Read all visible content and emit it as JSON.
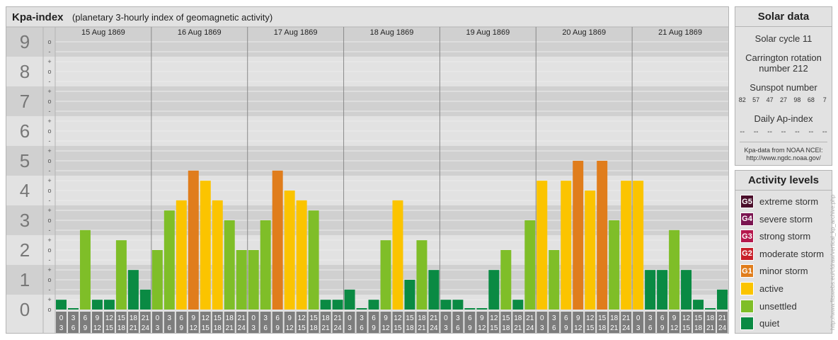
{
  "header": {
    "title": "Kpa-index",
    "subtitle": "(planetary 3-hourly index of geomagnetic activity)"
  },
  "chart_data": {
    "type": "bar",
    "ylim": [
      0,
      9
    ],
    "y_ticks": [
      "0",
      "1",
      "2",
      "3",
      "4",
      "5",
      "6",
      "7",
      "8",
      "9"
    ],
    "minor_marks": [
      "-",
      "o",
      "+"
    ],
    "days": [
      "15 Aug 1869",
      "16 Aug 1869",
      "17 Aug 1869",
      "18 Aug 1869",
      "19 Aug 1869",
      "20 Aug 1869",
      "21 Aug 1869"
    ],
    "slot_top": [
      "0",
      "3",
      "6",
      "9",
      "12",
      "15",
      "18",
      "21"
    ],
    "slot_bottom": [
      "3",
      "6",
      "9",
      "12",
      "15",
      "18",
      "21",
      "24"
    ],
    "values": [
      [
        0.33,
        0,
        2.67,
        0.33,
        0.33,
        2.33,
        1.33,
        0.67
      ],
      [
        2,
        3.33,
        3.67,
        4.67,
        4.33,
        3.67,
        3,
        2
      ],
      [
        2,
        3,
        4.67,
        4,
        3.67,
        3.33,
        0.33,
        0.33
      ],
      [
        0.67,
        0,
        0.33,
        2.33,
        3.67,
        1,
        2.33,
        1.33
      ],
      [
        0.33,
        0.33,
        0,
        0,
        1.33,
        2,
        0.33,
        3
      ],
      [
        4.33,
        2,
        4.33,
        5,
        4,
        5,
        3,
        4.33
      ],
      [
        4.33,
        1.33,
        1.33,
        2.67,
        1.33,
        0.33,
        0,
        0.67
      ]
    ],
    "level_colors": {
      "quiet": "#0a8a43",
      "unsettled": "#7fbe28",
      "active": "#fbc400",
      "minor": "#e07d1c",
      "moderate": "#c8202a",
      "strong": "#b5184d",
      "severe": "#7a1450",
      "extreme": "#4a0e2a"
    }
  },
  "sidebar": {
    "solar_title": "Solar data",
    "solar_cycle": "Solar cycle 11",
    "carrington_line1": "Carrington rotation",
    "carrington_line2": "number 212",
    "sunspot_title": "Sunspot number",
    "sunspot_values": [
      "82",
      "57",
      "47",
      "27",
      "98",
      "68",
      "7"
    ],
    "ap_title": "Daily Ap-index",
    "ap_values": [
      "--",
      "--",
      "--",
      "--",
      "--",
      "--",
      "--"
    ],
    "source_line1": "Kpa-data from NOAA NCEI:",
    "source_line2": "http://www.ngdc.noaa.gov/",
    "activity_title": "Activity levels",
    "levels": [
      {
        "code": "G5",
        "label": "extreme storm",
        "color": "#4a0e2a"
      },
      {
        "code": "G4",
        "label": "severe storm",
        "color": "#7a1450"
      },
      {
        "code": "G3",
        "label": "strong storm",
        "color": "#b5184d"
      },
      {
        "code": "G2",
        "label": "moderate storm",
        "color": "#c8202a"
      },
      {
        "code": "G1",
        "label": "minor storm",
        "color": "#e07d1c"
      },
      {
        "code": "",
        "label": "active",
        "color": "#fbc400"
      },
      {
        "code": "",
        "label": "unsettled",
        "color": "#7fbe28"
      },
      {
        "code": "",
        "label": "quiet",
        "color": "#0a8a43"
      }
    ]
  },
  "watermark": "http://www.fitswebs.eu/cfdraw/vertical_kp_archive.php"
}
